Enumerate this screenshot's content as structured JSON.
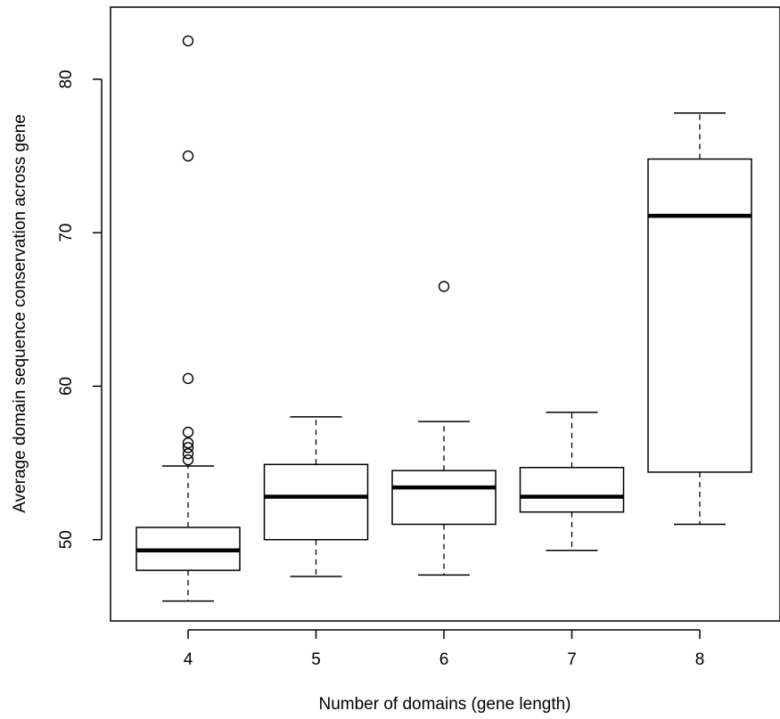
{
  "chart_data": {
    "type": "boxplot",
    "title": "",
    "xlabel": "Number of domains (gene length)",
    "ylabel": "Average domain sequence conservation across gene",
    "ylim": [
      44.7,
      84.7
    ],
    "yticks": [
      50,
      60,
      70,
      80
    ],
    "grid": false,
    "legend": "none",
    "categories": [
      "4",
      "5",
      "6",
      "7",
      "8"
    ],
    "boxes": [
      {
        "category": "4",
        "whisker_low": 46.0,
        "q1": 48.0,
        "median": 49.3,
        "q3": 50.8,
        "whisker_high": 54.8,
        "outliers": [
          55.2,
          55.6,
          56.0,
          56.3,
          57.0,
          60.5,
          75.0,
          82.5
        ]
      },
      {
        "category": "5",
        "whisker_low": 47.6,
        "q1": 50.0,
        "median": 52.8,
        "q3": 54.9,
        "whisker_high": 58.0,
        "outliers": []
      },
      {
        "category": "6",
        "whisker_low": 47.7,
        "q1": 51.0,
        "median": 53.4,
        "q3": 54.5,
        "whisker_high": 57.7,
        "outliers": [
          66.5
        ]
      },
      {
        "category": "7",
        "whisker_low": 49.3,
        "q1": 51.8,
        "median": 52.8,
        "q3": 54.7,
        "whisker_high": 58.3,
        "outliers": []
      },
      {
        "category": "8",
        "whisker_low": 51.0,
        "q1": 54.4,
        "median": 71.1,
        "q3": 74.8,
        "whisker_high": 77.8,
        "outliers": []
      }
    ]
  }
}
